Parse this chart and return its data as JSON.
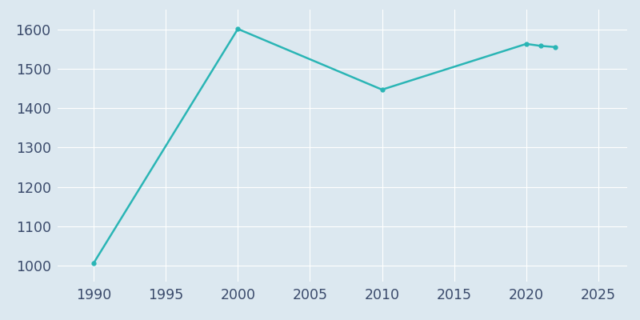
{
  "years": [
    1990,
    2000,
    2010,
    2020,
    2021,
    2022
  ],
  "population": [
    1007,
    1601,
    1447,
    1563,
    1558,
    1555
  ],
  "line_color": "#2ab5b5",
  "marker": "o",
  "marker_size": 3.5,
  "line_width": 1.8,
  "plot_bg_color": "#dce8f0",
  "fig_bg_color": "#dce8f0",
  "grid_color": "#ffffff",
  "xlim": [
    1987.5,
    2027
  ],
  "ylim": [
    960,
    1650
  ],
  "xticks": [
    1990,
    1995,
    2000,
    2005,
    2010,
    2015,
    2020,
    2025
  ],
  "yticks": [
    1000,
    1100,
    1200,
    1300,
    1400,
    1500,
    1600
  ],
  "tick_label_color": "#3a4a6b",
  "tick_fontsize": 12.5
}
